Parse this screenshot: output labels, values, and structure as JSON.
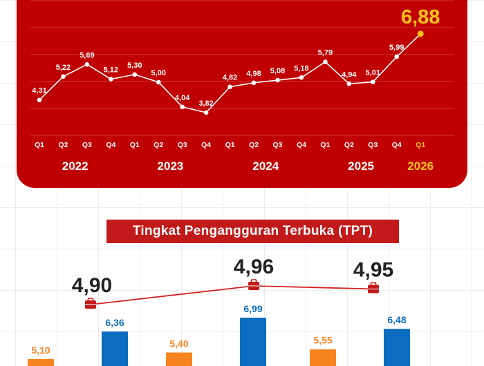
{
  "colors": {
    "panel": "#c00000",
    "highlight": "#f5c518",
    "white": "#ffffff",
    "orange": "#f7841f",
    "blue": "#0c6cbf",
    "tpt_line": "#d32222",
    "tpt_marker": "#c21a1a",
    "dark_text": "#222222"
  },
  "chart_data": [
    {
      "type": "line",
      "title": "",
      "x": [
        "Q1",
        "Q2",
        "Q3",
        "Q4",
        "Q1",
        "Q2",
        "Q3",
        "Q4",
        "Q1",
        "Q2",
        "Q3",
        "Q4",
        "Q1",
        "Q2",
        "Q3",
        "Q4",
        "Q1"
      ],
      "years": [
        {
          "label": "2022",
          "quarters": 4
        },
        {
          "label": "2023",
          "quarters": 4
        },
        {
          "label": "2024",
          "quarters": 4
        },
        {
          "label": "2025",
          "quarters": 4
        },
        {
          "label": "2026",
          "quarters": 1,
          "highlight": true
        }
      ],
      "series": [
        {
          "values": [
            4.31,
            5.22,
            5.69,
            5.12,
            5.3,
            5.0,
            4.04,
            3.82,
            4.82,
            4.98,
            5.08,
            5.18,
            5.79,
            4.94,
            5.01,
            5.99,
            6.88
          ],
          "labels": [
            "4,31",
            "5,22",
            "5,69",
            "5,12",
            "5,30",
            "5,00",
            "4,04",
            "3,82",
            "4,82",
            "4,98",
            "5,08",
            "5,18",
            "5,79",
            "4,94",
            "5,01",
            "5,99",
            "6,88"
          ]
        }
      ],
      "highlight_index": 16,
      "grid": true
    },
    {
      "type": "bar",
      "title": "Tingkat Pengangguran Terbuka (TPT)",
      "groups": 3,
      "bars": [
        {
          "group": 0,
          "kind": "orange",
          "value": 5.1,
          "label": "5,10"
        },
        {
          "group": 0,
          "kind": "blue",
          "value": 6.36,
          "label": "6,36"
        },
        {
          "group": 1,
          "kind": "orange",
          "value": 5.4,
          "label": "5,40"
        },
        {
          "group": 1,
          "kind": "blue",
          "value": 6.99,
          "label": "6,99"
        },
        {
          "group": 2,
          "kind": "orange",
          "value": 5.55,
          "label": "5,55"
        },
        {
          "group": 2,
          "kind": "blue",
          "value": 6.48,
          "label": "6,48"
        }
      ],
      "tpt_line": {
        "values": [
          4.9,
          4.96,
          4.95
        ],
        "labels": [
          "4,90",
          "4,96",
          "4,95"
        ]
      }
    }
  ]
}
